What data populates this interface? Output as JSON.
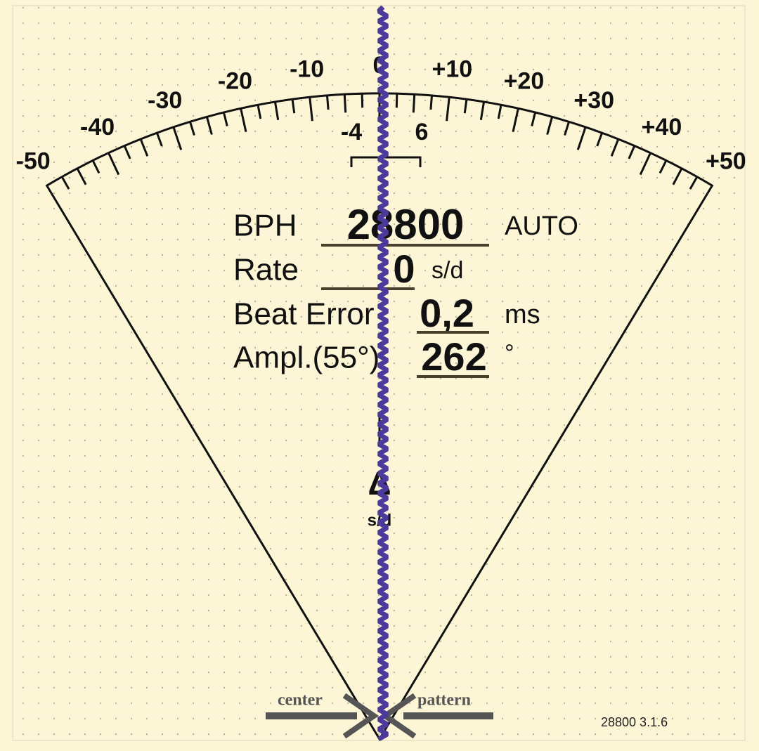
{
  "scale": {
    "labels": [
      "-50",
      "-40",
      "-30",
      "-20",
      "-10",
      "0",
      "+10",
      "+20",
      "+30",
      "+40",
      "+50"
    ],
    "inner_labels": [
      "-4",
      "6"
    ]
  },
  "readout": {
    "bph": {
      "label": "BPH",
      "value": "28800",
      "mode": "AUTO"
    },
    "rate": {
      "label": "Rate",
      "value": "0",
      "unit": "s/d"
    },
    "beat_error": {
      "label": "Beat Error",
      "value": "0,2",
      "unit": "ms"
    },
    "amplitude": {
      "label": "Ampl.(55°)",
      "value": "262",
      "unit": "°"
    }
  },
  "delta": {
    "symbol": "Δ",
    "unit": "s/d"
  },
  "footer": {
    "center": "center",
    "pattern": "pattern",
    "version": "28800 3.1.6"
  }
}
